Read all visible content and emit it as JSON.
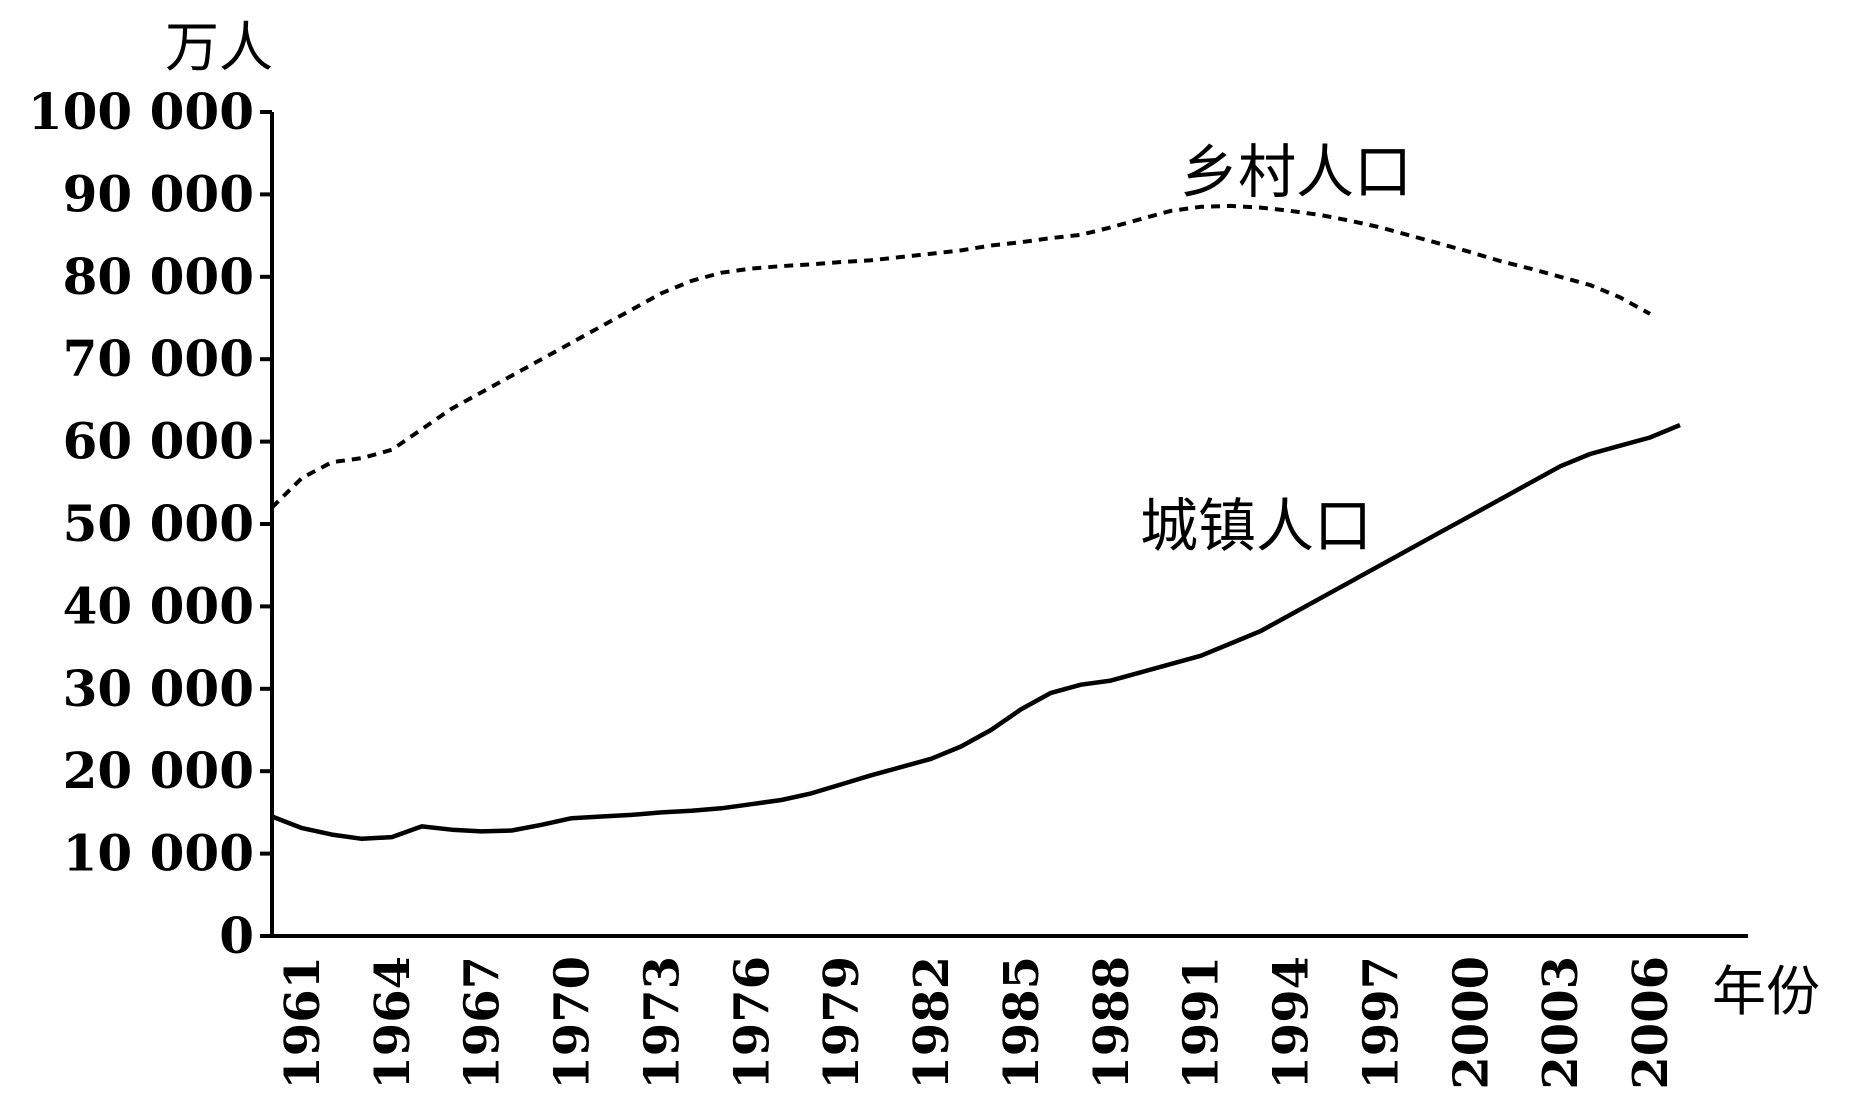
{
  "chart_data": {
    "type": "line",
    "title": "",
    "ylabel": "万人",
    "xlabel": "年份",
    "ylim": [
      0,
      100000
    ],
    "xlim": [
      1960,
      2007
    ],
    "grid": false,
    "yticks": [
      0,
      10000,
      20000,
      30000,
      40000,
      50000,
      60000,
      70000,
      80000,
      90000,
      100000
    ],
    "ytick_labels": [
      "0",
      "10 000",
      "20 000",
      "30 000",
      "40 000",
      "50 000",
      "60 000",
      "70 000",
      "80 000",
      "90 000",
      "100 000"
    ],
    "xtick_labels": [
      "1961",
      "1964",
      "1967",
      "1970",
      "1973",
      "1976",
      "1979",
      "1982",
      "1985",
      "1988",
      "1991",
      "1994",
      "1997",
      "2000",
      "2003",
      "2006"
    ],
    "series": [
      {
        "name": "乡村人口",
        "style": "dashed",
        "x": [
          1960,
          1961,
          1962,
          1963,
          1964,
          1965,
          1966,
          1967,
          1968,
          1969,
          1970,
          1971,
          1972,
          1973,
          1974,
          1975,
          1976,
          1977,
          1978,
          1979,
          1980,
          1981,
          1982,
          1983,
          1984,
          1985,
          1986,
          1987,
          1988,
          1989,
          1990,
          1991,
          1992,
          1993,
          1994,
          1995,
          1996,
          1997,
          1998,
          1999,
          2000,
          2001,
          2002,
          2003,
          2004,
          2005,
          2006
        ],
        "values": [
          52000,
          55600,
          57500,
          58000,
          59000,
          61500,
          64000,
          66000,
          68000,
          70000,
          72000,
          74000,
          76000,
          78000,
          79500,
          80500,
          81000,
          81300,
          81500,
          81800,
          82000,
          82400,
          82800,
          83200,
          83800,
          84200,
          84700,
          85100,
          86000,
          87000,
          88000,
          88500,
          88600,
          88400,
          88000,
          87500,
          86800,
          86000,
          85000,
          84000,
          83000,
          81900,
          81000,
          80000,
          79000,
          77500,
          75500
        ]
      },
      {
        "name": "城镇人口",
        "style": "solid",
        "x": [
          1960,
          1961,
          1962,
          1963,
          1964,
          1965,
          1966,
          1967,
          1968,
          1969,
          1970,
          1971,
          1972,
          1973,
          1974,
          1975,
          1976,
          1977,
          1978,
          1979,
          1980,
          1981,
          1982,
          1983,
          1984,
          1985,
          1986,
          1987,
          1988,
          1989,
          1990,
          1991,
          1992,
          1993,
          1994,
          1995,
          1996,
          1997,
          1998,
          1999,
          2000,
          2001,
          2002,
          2003,
          2004,
          2005,
          2006,
          2007
        ],
        "values": [
          14500,
          13100,
          12300,
          11800,
          12000,
          13300,
          12900,
          12700,
          12800,
          13500,
          14300,
          14500,
          14700,
          15000,
          15200,
          15500,
          16000,
          16500,
          17300,
          18400,
          19500,
          20500,
          21500,
          23000,
          25000,
          27500,
          29500,
          30500,
          31000,
          32000,
          33000,
          34000,
          35500,
          37000,
          39000,
          41000,
          43000,
          45000,
          47000,
          49000,
          51000,
          53000,
          55000,
          57000,
          58500,
          59500,
          60500,
          62000
        ]
      }
    ],
    "annotations": [
      {
        "text": "乡村人口",
        "series": 0
      },
      {
        "text": "城镇人口",
        "series": 1
      }
    ]
  }
}
